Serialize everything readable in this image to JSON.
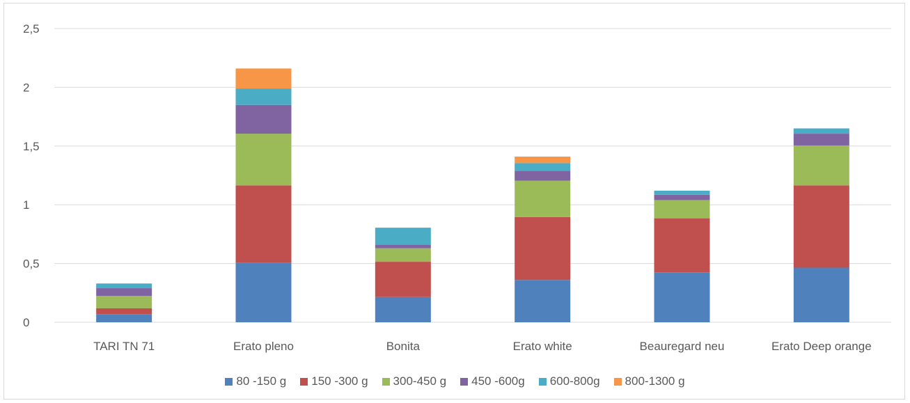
{
  "chart_data": {
    "type": "bar",
    "stacked": true,
    "categories": [
      "TARI TN 71",
      "Erato pleno",
      "Bonita",
      "Erato white",
      "Beauregard neu",
      "Erato Deep orange"
    ],
    "series": [
      {
        "name": "80 -150 g",
        "color": "#4f81bd",
        "values": [
          0.07,
          0.505,
          0.215,
          0.36,
          0.425,
          0.465
        ]
      },
      {
        "name": "150 -300 g",
        "color": "#c0504d",
        "values": [
          0.05,
          0.66,
          0.3,
          0.535,
          0.46,
          0.7
        ]
      },
      {
        "name": "300-450 g",
        "color": "#9bbb59",
        "values": [
          0.105,
          0.44,
          0.115,
          0.31,
          0.155,
          0.34
        ]
      },
      {
        "name": "450 -600g",
        "color": "#8064a2",
        "values": [
          0.065,
          0.245,
          0.03,
          0.085,
          0.045,
          0.1
        ]
      },
      {
        "name": "600-800g",
        "color": "#4bacc6",
        "values": [
          0.04,
          0.14,
          0.145,
          0.065,
          0.035,
          0.045
        ]
      },
      {
        "name": "800-1300 g",
        "color": "#f79646",
        "values": [
          0,
          0.17,
          0,
          0.055,
          0,
          0
        ]
      }
    ],
    "ylim": [
      0,
      2.5
    ],
    "yticks": [
      0,
      0.5,
      1,
      1.5,
      2,
      2.5
    ],
    "ytick_labels": [
      "0",
      "0,5",
      "1",
      "1,5",
      "2",
      "2,5"
    ],
    "grid": true,
    "legend_position": "bottom"
  }
}
